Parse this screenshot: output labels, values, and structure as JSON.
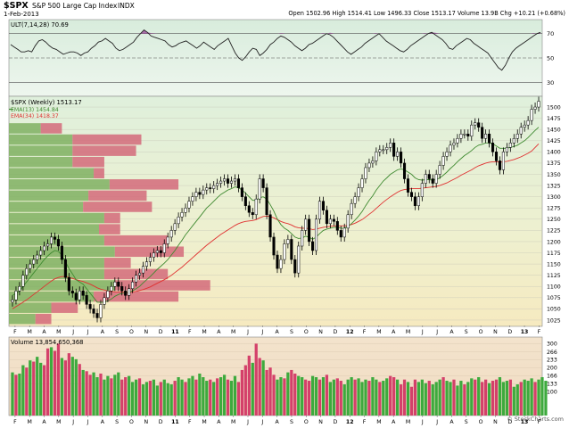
{
  "header": {
    "symbol": "$SPX",
    "name": "S&P 500 Large Cap Index",
    "exchange": "INDX",
    "date": "1-Feb-2013",
    "quote": "Open 1502.96  High 1514.41  Low 1496.33  Close 1513.17  Volume 13.9B  Chg +10.21 (+0.68%)",
    "brand": "© StockCharts.com"
  },
  "ult": {
    "label": "ULT(7,14,28) 70.69",
    "ylim": [
      20,
      80
    ],
    "ticks": [
      {
        "v": 70,
        "t": "70"
      },
      {
        "v": 50,
        "t": "50"
      },
      {
        "v": 30,
        "t": "30"
      }
    ],
    "values": [
      61,
      59,
      57,
      55,
      55,
      56,
      55,
      60,
      64,
      65,
      63,
      60,
      58,
      57,
      55,
      53,
      54,
      55,
      55,
      54,
      52,
      54,
      55,
      58,
      60,
      63,
      64,
      66,
      64,
      62,
      58,
      56,
      57,
      59,
      61,
      63,
      67,
      70,
      73,
      71,
      68,
      67,
      66,
      65,
      64,
      61,
      59,
      60,
      62,
      63,
      64,
      62,
      60,
      58,
      60,
      63,
      61,
      59,
      57,
      60,
      62,
      64,
      66,
      60,
      54,
      50,
      48,
      51,
      55,
      58,
      57,
      52,
      54,
      57,
      61,
      63,
      66,
      68,
      67,
      65,
      63,
      60,
      58,
      56,
      58,
      61,
      62,
      64,
      66,
      68,
      70,
      69,
      67,
      64,
      61,
      58,
      55,
      53,
      55,
      57,
      59,
      62,
      64,
      66,
      68,
      70,
      67,
      64,
      62,
      60,
      58,
      56,
      55,
      57,
      60,
      62,
      64,
      66,
      68,
      70,
      71,
      69,
      67,
      65,
      62,
      58,
      57,
      60,
      62,
      64,
      66,
      65,
      62,
      60,
      58,
      56,
      54,
      50,
      46,
      42,
      40,
      44,
      50,
      55,
      58,
      60,
      62,
      64,
      66,
      68,
      70,
      71
    ]
  },
  "price": {
    "label": "$SPX (Weekly) 1513.17",
    "legend": [
      {
        "name": "EMA(13) 1454.84",
        "color": "#4a8c3a"
      },
      {
        "name": "EMA(34) 1418.37",
        "color": "#e03030"
      }
    ],
    "ylim": [
      1015,
      1520
    ],
    "ticks": [
      1025,
      1050,
      1075,
      1100,
      1125,
      1150,
      1175,
      1200,
      1225,
      1250,
      1275,
      1300,
      1325,
      1350,
      1375,
      1400,
      1425,
      1450,
      1475,
      1500
    ],
    "closes": [
      1070,
      1090,
      1100,
      1125,
      1140,
      1150,
      1160,
      1170,
      1180,
      1190,
      1195,
      1210,
      1205,
      1190,
      1160,
      1120,
      1090,
      1085,
      1070,
      1090,
      1080,
      1060,
      1050,
      1040,
      1030,
      1060,
      1075,
      1090,
      1100,
      1110,
      1100,
      1090,
      1080,
      1095,
      1110,
      1125,
      1130,
      1145,
      1155,
      1165,
      1175,
      1180,
      1175,
      1195,
      1210,
      1225,
      1240,
      1255,
      1265,
      1275,
      1290,
      1300,
      1310,
      1305,
      1315,
      1320,
      1318,
      1325,
      1330,
      1335,
      1340,
      1330,
      1335,
      1340,
      1320,
      1300,
      1280,
      1265,
      1260,
      1295,
      1340,
      1320,
      1260,
      1210,
      1170,
      1140,
      1160,
      1195,
      1205,
      1160,
      1130,
      1190,
      1225,
      1250,
      1200,
      1180,
      1250,
      1290,
      1270,
      1240,
      1250,
      1245,
      1225,
      1210,
      1230,
      1260,
      1285,
      1300,
      1320,
      1340,
      1365,
      1375,
      1380,
      1400,
      1405,
      1405,
      1410,
      1420,
      1390,
      1400,
      1375,
      1340,
      1310,
      1300,
      1280,
      1300,
      1330,
      1350,
      1340,
      1330,
      1350,
      1370,
      1390,
      1400,
      1415,
      1420,
      1430,
      1440,
      1440,
      1435,
      1460,
      1465,
      1455,
      1430,
      1440,
      1420,
      1400,
      1380,
      1360,
      1400,
      1410,
      1420,
      1430,
      1440,
      1455,
      1460,
      1470,
      1495,
      1500,
      1513
    ],
    "ema13": [
      1080,
      1085,
      1090,
      1100,
      1110,
      1120,
      1130,
      1140,
      1150,
      1160,
      1168,
      1175,
      1180,
      1178,
      1170,
      1155,
      1140,
      1128,
      1115,
      1110,
      1105,
      1095,
      1085,
      1075,
      1065,
      1065,
      1065,
      1068,
      1072,
      1078,
      1082,
      1085,
      1085,
      1087,
      1090,
      1095,
      1100,
      1108,
      1115,
      1122,
      1130,
      1138,
      1145,
      1152,
      1160,
      1170,
      1180,
      1192,
      1203,
      1215,
      1225,
      1235,
      1245,
      1255,
      1265,
      1275,
      1282,
      1290,
      1298,
      1305,
      1310,
      1315,
      1318,
      1322,
      1320,
      1315,
      1308,
      1300,
      1292,
      1292,
      1298,
      1300,
      1295,
      1282,
      1268,
      1250,
      1238,
      1230,
      1225,
      1218,
      1210,
      1207,
      1208,
      1212,
      1210,
      1205,
      1210,
      1218,
      1225,
      1228,
      1230,
      1232,
      1232,
      1230,
      1230,
      1234,
      1240,
      1248,
      1257,
      1267,
      1280,
      1292,
      1302,
      1315,
      1325,
      1335,
      1342,
      1350,
      1355,
      1360,
      1362,
      1360,
      1355,
      1350,
      1342,
      1338,
      1337,
      1338,
      1338,
      1337,
      1338,
      1342,
      1348,
      1355,
      1363,
      1370,
      1378,
      1385,
      1392,
      1397,
      1403,
      1410,
      1415,
      1417,
      1420,
      1420,
      1418,
      1413,
      1408,
      1408,
      1408,
      1410,
      1412,
      1415,
      1420,
      1425,
      1432,
      1440,
      1448,
      1455
    ],
    "ema34": [
      1050,
      1055,
      1060,
      1065,
      1070,
      1076,
      1082,
      1088,
      1094,
      1100,
      1106,
      1112,
      1117,
      1120,
      1122,
      1122,
      1120,
      1118,
      1115,
      1113,
      1111,
      1108,
      1105,
      1101,
      1097,
      1094,
      1092,
      1090,
      1089,
      1088,
      1088,
      1088,
      1087,
      1087,
      1088,
      1089,
      1091,
      1093,
      1096,
      1099,
      1103,
      1107,
      1111,
      1115,
      1120,
      1125,
      1131,
      1137,
      1143,
      1150,
      1157,
      1164,
      1171,
      1178,
      1185,
      1192,
      1198,
      1204,
      1210,
      1216,
      1221,
      1226,
      1231,
      1236,
      1240,
      1243,
      1245,
      1246,
      1247,
      1249,
      1253,
      1256,
      1257,
      1256,
      1253,
      1249,
      1245,
      1242,
      1240,
      1237,
      1233,
      1231,
      1230,
      1230,
      1229,
      1227,
      1228,
      1230,
      1232,
      1233,
      1234,
      1235,
      1235,
      1235,
      1235,
      1236,
      1238,
      1241,
      1245,
      1249,
      1255,
      1261,
      1267,
      1274,
      1281,
      1288,
      1294,
      1300,
      1305,
      1310,
      1314,
      1316,
      1317,
      1318,
      1318,
      1318,
      1319,
      1320,
      1321,
      1322,
      1323,
      1325,
      1328,
      1331,
      1335,
      1339,
      1343,
      1348,
      1352,
      1356,
      1360,
      1365,
      1369,
      1372,
      1375,
      1377,
      1378,
      1378,
      1377,
      1378,
      1379,
      1381,
      1383,
      1386,
      1389,
      1393,
      1397,
      1402,
      1410,
      1418
    ],
    "volume_by_price": [
      {
        "lo": 1015,
        "hi": 1040,
        "up": 0.05,
        "dn": 0.03
      },
      {
        "lo": 1040,
        "hi": 1065,
        "up": 0.08,
        "dn": 0.05
      },
      {
        "lo": 1065,
        "hi": 1090,
        "up": 0.16,
        "dn": 0.16
      },
      {
        "lo": 1090,
        "hi": 1115,
        "up": 0.2,
        "dn": 0.18
      },
      {
        "lo": 1115,
        "hi": 1140,
        "up": 0.18,
        "dn": 0.12
      },
      {
        "lo": 1140,
        "hi": 1165,
        "up": 0.18,
        "dn": 0.05
      },
      {
        "lo": 1165,
        "hi": 1190,
        "up": 0.2,
        "dn": 0.13
      },
      {
        "lo": 1190,
        "hi": 1215,
        "up": 0.18,
        "dn": 0.12
      },
      {
        "lo": 1215,
        "hi": 1240,
        "up": 0.17,
        "dn": 0.04
      },
      {
        "lo": 1240,
        "hi": 1265,
        "up": 0.18,
        "dn": 0.03
      },
      {
        "lo": 1265,
        "hi": 1290,
        "up": 0.14,
        "dn": 0.13
      },
      {
        "lo": 1290,
        "hi": 1315,
        "up": 0.15,
        "dn": 0.11
      },
      {
        "lo": 1315,
        "hi": 1340,
        "up": 0.19,
        "dn": 0.13
      },
      {
        "lo": 1340,
        "hi": 1365,
        "up": 0.16,
        "dn": 0.02
      },
      {
        "lo": 1365,
        "hi": 1390,
        "up": 0.12,
        "dn": 0.06
      },
      {
        "lo": 1390,
        "hi": 1415,
        "up": 0.12,
        "dn": 0.12
      },
      {
        "lo": 1415,
        "hi": 1440,
        "up": 0.12,
        "dn": 0.13
      },
      {
        "lo": 1440,
        "hi": 1465,
        "up": 0.06,
        "dn": 0.04
      }
    ]
  },
  "volume": {
    "label": "Volume 13,854,650,368",
    "ylim": [
      0,
      320
    ],
    "ticks": [
      {
        "v": 100,
        "t": "100"
      },
      {
        "v": 133,
        "t": "133"
      },
      {
        "v": 166,
        "t": "166"
      },
      {
        "v": 200,
        "t": "200"
      },
      {
        "v": 233,
        "t": "233"
      },
      {
        "v": 266,
        "t": "266"
      },
      {
        "v": 300,
        "t": "300"
      }
    ],
    "unit": "",
    "bars": [
      180,
      170,
      175,
      210,
      200,
      230,
      225,
      245,
      220,
      210,
      280,
      285,
      270,
      300,
      240,
      230,
      260,
      245,
      235,
      215,
      190,
      185,
      170,
      180,
      160,
      175,
      150,
      165,
      155,
      170,
      180,
      150,
      160,
      165,
      140,
      150,
      155,
      130,
      140,
      145,
      150,
      125,
      140,
      150,
      135,
      130,
      145,
      160,
      150,
      140,
      155,
      165,
      150,
      175,
      160,
      145,
      150,
      140,
      155,
      160,
      170,
      150,
      145,
      165,
      140,
      190,
      210,
      250,
      220,
      300,
      240,
      230,
      190,
      200,
      170,
      150,
      160,
      155,
      180,
      190,
      175,
      165,
      160,
      150,
      145,
      165,
      160,
      150,
      160,
      170,
      140,
      150,
      155,
      145,
      130,
      150,
      160,
      150,
      155,
      140,
      150,
      145,
      160,
      150,
      140,
      145,
      155,
      165,
      160,
      150,
      130,
      150,
      140,
      120,
      150,
      140,
      150,
      135,
      145,
      130,
      140,
      150,
      160,
      145,
      140,
      150,
      125,
      145,
      130,
      140,
      155,
      150,
      160,
      140,
      150,
      135,
      145,
      150,
      160,
      140,
      145,
      150,
      120,
      130,
      140,
      150,
      145,
      155,
      140,
      150,
      160,
      145
    ],
    "up": [
      1,
      0,
      1,
      1,
      0,
      1,
      0,
      1,
      1,
      0,
      0,
      1,
      0,
      0,
      1,
      0,
      0,
      1,
      1,
      0,
      1,
      0,
      0,
      1,
      1,
      0,
      1,
      1,
      0,
      1,
      1,
      0,
      0,
      1,
      1,
      1,
      0,
      1,
      1,
      0,
      1,
      1,
      0,
      1,
      1,
      1,
      0,
      1,
      1,
      0,
      1,
      1,
      0,
      1,
      1,
      1,
      0,
      1,
      0,
      1,
      1,
      0,
      1,
      1,
      0,
      0,
      0,
      0,
      1,
      0,
      0,
      1,
      0,
      0,
      0,
      1,
      1,
      0,
      1,
      0,
      0,
      1,
      1,
      0,
      0,
      1,
      1,
      0,
      1,
      0,
      1,
      1,
      0,
      0,
      1,
      1,
      1,
      0,
      1,
      1,
      1,
      0,
      1,
      1,
      0,
      1,
      1,
      0,
      0,
      1,
      0,
      0,
      1,
      0,
      0,
      1,
      1,
      1,
      0,
      1,
      1,
      1,
      0,
      1,
      1,
      0,
      1,
      1,
      0,
      1,
      1,
      0,
      1,
      0,
      0,
      1,
      0,
      0,
      1,
      1,
      1,
      0,
      1,
      1,
      0,
      1,
      1,
      1,
      0,
      1,
      1,
      1
    ]
  },
  "xaxis": {
    "labels": [
      "F",
      "M",
      "A",
      "M",
      "J",
      "J",
      "A",
      "S",
      "O",
      "N",
      "D",
      "11",
      "F",
      "M",
      "A",
      "M",
      "J",
      "J",
      "A",
      "S",
      "O",
      "N",
      "D",
      "12",
      "F",
      "M",
      "A",
      "M",
      "J",
      "J",
      "A",
      "S",
      "O",
      "N",
      "D",
      "13",
      "F"
    ],
    "bold": [
      "11",
      "12",
      "13"
    ]
  },
  "colors": {
    "up_volume": "#3daa3d",
    "down_volume": "#d4406a",
    "vbp_up": "#7fb062",
    "vbp_down": "#d46a7a",
    "ult_line": "#222222",
    "ult_over": "#9b4d9a",
    "ult_under": "#6e6eb0"
  }
}
